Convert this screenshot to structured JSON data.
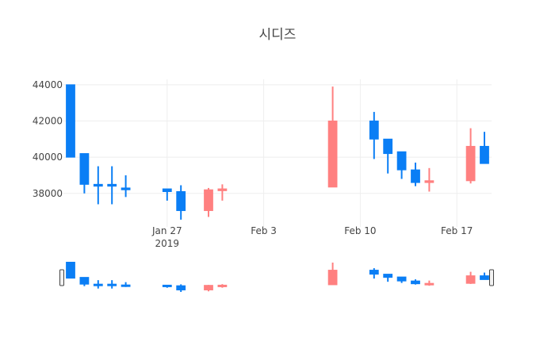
{
  "chart_data": {
    "type": "candlestick",
    "title": "시디즈",
    "increasing_color": "#ff8080",
    "decreasing_color": "#0a7ef5",
    "xlabel": "",
    "ylabel": "",
    "yticks": [
      38000,
      40000,
      42000,
      44000
    ],
    "ylim": [
      36150,
      44300
    ],
    "xlim": [
      "2019-01-20",
      "2019-02-19"
    ],
    "xticks": [
      {
        "date": "2019-01-27",
        "label": "Jan 27",
        "sublabel": "2019"
      },
      {
        "date": "2019-02-03",
        "label": "Feb 3",
        "sublabel": ""
      },
      {
        "date": "2019-02-10",
        "label": "Feb 10",
        "sublabel": ""
      },
      {
        "date": "2019-02-17",
        "label": "Feb 17",
        "sublabel": ""
      }
    ],
    "grid": true,
    "rangeslider": true,
    "candles": [
      {
        "date": "2019-01-20",
        "open": 44000,
        "high": 44000,
        "low": 40000,
        "close": 40000
      },
      {
        "date": "2019-01-21",
        "open": 40200,
        "high": 40200,
        "low": 38000,
        "close": 38500
      },
      {
        "date": "2019-01-22",
        "open": 38500,
        "high": 39500,
        "low": 37400,
        "close": 38400
      },
      {
        "date": "2019-01-23",
        "open": 38500,
        "high": 39500,
        "low": 37400,
        "close": 38400
      },
      {
        "date": "2019-01-24",
        "open": 38300,
        "high": 39000,
        "low": 37800,
        "close": 38200
      },
      {
        "date": "2019-01-27",
        "open": 38250,
        "high": 38250,
        "low": 37600,
        "close": 38100
      },
      {
        "date": "2019-01-28",
        "open": 38100,
        "high": 38450,
        "low": 36550,
        "close": 37050
      },
      {
        "date": "2019-01-30",
        "open": 37050,
        "high": 38300,
        "low": 36700,
        "close": 38200
      },
      {
        "date": "2019-01-31",
        "open": 38150,
        "high": 38500,
        "low": 37600,
        "close": 38250
      },
      {
        "date": "2019-02-08",
        "open": 38350,
        "high": 43900,
        "low": 38350,
        "close": 42000
      },
      {
        "date": "2019-02-11",
        "open": 42000,
        "high": 42500,
        "low": 39900,
        "close": 41000
      },
      {
        "date": "2019-02-12",
        "open": 41000,
        "high": 41000,
        "low": 39100,
        "close": 40200
      },
      {
        "date": "2019-02-13",
        "open": 40300,
        "high": 40300,
        "low": 38800,
        "close": 39300
      },
      {
        "date": "2019-02-14",
        "open": 39300,
        "high": 39700,
        "low": 38400,
        "close": 38600
      },
      {
        "date": "2019-02-15",
        "open": 38600,
        "high": 39400,
        "low": 38100,
        "close": 38700
      },
      {
        "date": "2019-02-18",
        "open": 38700,
        "high": 41600,
        "low": 38550,
        "close": 40600
      },
      {
        "date": "2019-02-19",
        "open": 40600,
        "high": 41400,
        "low": 39650,
        "close": 39650
      }
    ]
  }
}
